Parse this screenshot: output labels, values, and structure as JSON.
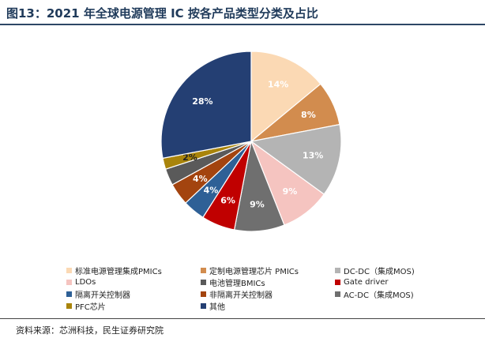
{
  "title": "图13：2021 年全球电源管理 IC 按各产品类型分类及占比",
  "source": "资料来源：芯洲科技，民生证券研究院",
  "chart_data": {
    "type": "pie",
    "title": "",
    "start_angle_deg": 0,
    "direction": "clockwise",
    "slices": [
      {
        "name": "标准电源管理集成PMICs",
        "value": 14,
        "label": "14%",
        "color": "#fbd9b4",
        "label_color": "#ffffff"
      },
      {
        "name": "定制电源管理芯片 PMICs",
        "value": 8,
        "label": "8%",
        "color": "#d28c4e",
        "label_color": "#ffffff"
      },
      {
        "name": "DC-DC（集成MOS)",
        "value": 13,
        "label": "13%",
        "color": "#b4b4b4",
        "label_color": "#ffffff"
      },
      {
        "name": "LDOs",
        "value": 9,
        "label": "9%",
        "color": "#f5c4c0",
        "label_color": "#ffffff"
      },
      {
        "name": "AC-DC（集成MOS)",
        "value": 9,
        "label": "9%",
        "color": "#6f6f6f",
        "label_color": "#ffffff"
      },
      {
        "name": "Gate driver",
        "value": 6,
        "label": "6%",
        "color": "#c00000",
        "label_color": "#ffffff"
      },
      {
        "name": "隔离开关控制器",
        "value": 4,
        "label": "4%",
        "color": "#2e6096",
        "label_color": "#ffffff"
      },
      {
        "name": "非隔离开关控制器",
        "value": 4,
        "label": "4%",
        "color": "#a3440f",
        "label_color": "#ffffff"
      },
      {
        "name": "电池管理BMICs",
        "value": 3,
        "label": "",
        "color": "#5a5a5a",
        "label_color": "#ffffff"
      },
      {
        "name": "PFC芯片",
        "value": 2,
        "label": "2%",
        "color": "#a9840b",
        "label_color": "#222222"
      },
      {
        "name": "其他",
        "value": 28,
        "label": "28%",
        "color": "#243f73",
        "label_color": "#ffffff"
      }
    ],
    "legend": [
      {
        "name": "标准电源管理集成PMICs",
        "color": "#fbd9b4"
      },
      {
        "name": "定制电源管理芯片 PMICs",
        "color": "#d28c4e"
      },
      {
        "name": "DC-DC（集成MOS)",
        "color": "#b4b4b4"
      },
      {
        "name": "LDOs",
        "color": "#f5c4c0"
      },
      {
        "name": "电池管理BMICs",
        "color": "#5a5a5a"
      },
      {
        "name": "Gate driver",
        "color": "#c00000"
      },
      {
        "name": "隔离开关控制器",
        "color": "#2e6096"
      },
      {
        "name": "非隔离开关控制器",
        "color": "#a3440f"
      },
      {
        "name": "AC-DC（集成MOS)",
        "color": "#6f6f6f"
      },
      {
        "name": "PFC芯片",
        "color": "#a9840b"
      },
      {
        "name": "其他",
        "color": "#243f73"
      }
    ],
    "legend_placement": "bottom"
  }
}
